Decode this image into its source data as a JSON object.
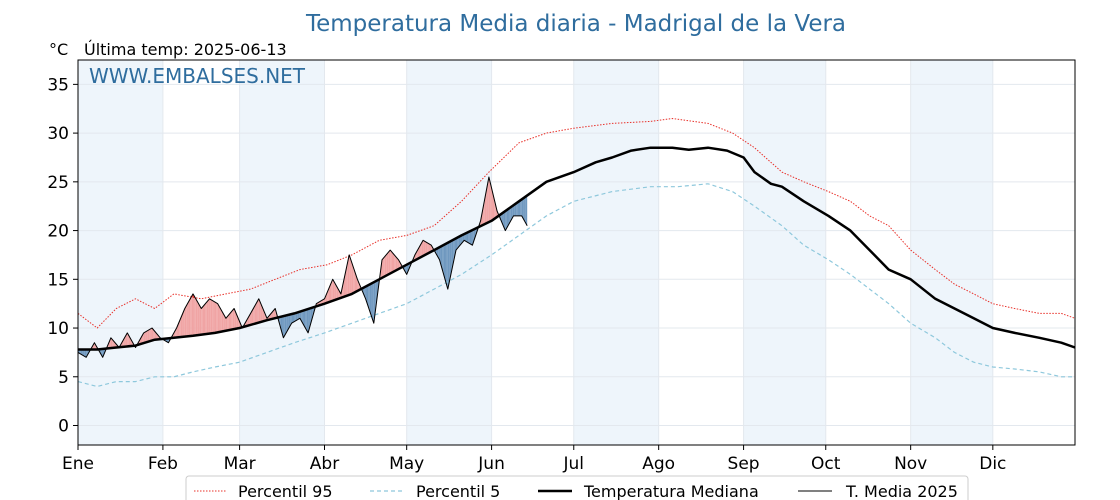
{
  "chart_data": {
    "type": "line",
    "title": "Temperatura Media diaria - Madrigal de la Vera",
    "unit_label": "°C",
    "last_temp_label": "Última temp: 2025-06-13",
    "watermark": "WWW.EMBALSES.NET",
    "ylim": [
      -2,
      37.5
    ],
    "yticks": [
      0,
      5,
      10,
      15,
      20,
      25,
      30,
      35
    ],
    "xlim": [
      1,
      365
    ],
    "x_unit": "day of year",
    "months": [
      {
        "label": "Ene",
        "day": 1
      },
      {
        "label": "Feb",
        "day": 32
      },
      {
        "label": "Mar",
        "day": 60
      },
      {
        "label": "Abr",
        "day": 91
      },
      {
        "label": "May",
        "day": 121
      },
      {
        "label": "Jun",
        "day": 152
      },
      {
        "label": "Jul",
        "day": 182
      },
      {
        "label": "Ago",
        "day": 213
      },
      {
        "label": "Sep",
        "day": 244
      },
      {
        "label": "Oct",
        "day": 274
      },
      {
        "label": "Nov",
        "day": 305
      },
      {
        "label": "Dic",
        "day": 335
      }
    ],
    "shaded_month_bands": [
      [
        1,
        32
      ],
      [
        60,
        91
      ],
      [
        121,
        152
      ],
      [
        182,
        213
      ],
      [
        244,
        274
      ],
      [
        305,
        335
      ]
    ],
    "grid": true,
    "legend_position": "bottom-center",
    "colors": {
      "p95": "#e8312a",
      "p5": "#8ec8dc",
      "median": "#000000",
      "current": "#000000",
      "above": "#f0a4a4",
      "above_extreme": "#e8312a",
      "below": "#6f98bf",
      "title": "#2f6d9e",
      "band": "#eef5fb"
    },
    "series": [
      {
        "name": "Percentil 95",
        "key": "p95",
        "style": "dotted",
        "points": [
          [
            1,
            11.5
          ],
          [
            8,
            10
          ],
          [
            15,
            12
          ],
          [
            22,
            13
          ],
          [
            29,
            12
          ],
          [
            36,
            13.5
          ],
          [
            46,
            13
          ],
          [
            55,
            13.5
          ],
          [
            64,
            14
          ],
          [
            73,
            15
          ],
          [
            82,
            16
          ],
          [
            92,
            16.5
          ],
          [
            101,
            17.5
          ],
          [
            111,
            19
          ],
          [
            121,
            19.5
          ],
          [
            131,
            20.5
          ],
          [
            141,
            23
          ],
          [
            151,
            26
          ],
          [
            162,
            29
          ],
          [
            172,
            30
          ],
          [
            182,
            30.5
          ],
          [
            196,
            31
          ],
          [
            210,
            31.2
          ],
          [
            218,
            31.5
          ],
          [
            231,
            31
          ],
          [
            240,
            30
          ],
          [
            248,
            28.5
          ],
          [
            258,
            26
          ],
          [
            266,
            25
          ],
          [
            275,
            24
          ],
          [
            283,
            23
          ],
          [
            290,
            21.5
          ],
          [
            297,
            20.5
          ],
          [
            305,
            18
          ],
          [
            314,
            16
          ],
          [
            321,
            14.5
          ],
          [
            328,
            13.5
          ],
          [
            335,
            12.5
          ],
          [
            343,
            12
          ],
          [
            352,
            11.5
          ],
          [
            360,
            11.5
          ],
          [
            365,
            11
          ]
        ]
      },
      {
        "name": "Percentil 5",
        "key": "p5",
        "style": "dashed",
        "points": [
          [
            1,
            4.5
          ],
          [
            8,
            4
          ],
          [
            15,
            4.5
          ],
          [
            22,
            4.5
          ],
          [
            29,
            5
          ],
          [
            36,
            5
          ],
          [
            43,
            5.5
          ],
          [
            51,
            6
          ],
          [
            60,
            6.5
          ],
          [
            70,
            7.5
          ],
          [
            80,
            8.5
          ],
          [
            91,
            9.5
          ],
          [
            101,
            10.5
          ],
          [
            111,
            11.5
          ],
          [
            121,
            12.5
          ],
          [
            131,
            14
          ],
          [
            141,
            15.5
          ],
          [
            152,
            17.5
          ],
          [
            162,
            19.5
          ],
          [
            172,
            21.5
          ],
          [
            182,
            23
          ],
          [
            196,
            24
          ],
          [
            210,
            24.5
          ],
          [
            220,
            24.5
          ],
          [
            231,
            24.8
          ],
          [
            240,
            24
          ],
          [
            248,
            22.5
          ],
          [
            258,
            20.5
          ],
          [
            266,
            18.5
          ],
          [
            275,
            17
          ],
          [
            283,
            15.5
          ],
          [
            290,
            14
          ],
          [
            297,
            12.5
          ],
          [
            305,
            10.5
          ],
          [
            314,
            9
          ],
          [
            321,
            7.5
          ],
          [
            328,
            6.5
          ],
          [
            335,
            6
          ],
          [
            343,
            5.8
          ],
          [
            352,
            5.5
          ],
          [
            360,
            5
          ],
          [
            365,
            5
          ]
        ]
      },
      {
        "name": "Temperatura Mediana",
        "key": "median",
        "style": "solid-thick",
        "points": [
          [
            1,
            7.8
          ],
          [
            8,
            7.8
          ],
          [
            15,
            8
          ],
          [
            22,
            8.2
          ],
          [
            29,
            8.8
          ],
          [
            36,
            9
          ],
          [
            43,
            9.2
          ],
          [
            51,
            9.5
          ],
          [
            60,
            10
          ],
          [
            70,
            10.8
          ],
          [
            80,
            11.5
          ],
          [
            91,
            12.5
          ],
          [
            101,
            13.5
          ],
          [
            111,
            15
          ],
          [
            121,
            16.5
          ],
          [
            131,
            18
          ],
          [
            141,
            19.5
          ],
          [
            152,
            21
          ],
          [
            162,
            23
          ],
          [
            172,
            25
          ],
          [
            182,
            26
          ],
          [
            190,
            27
          ],
          [
            196,
            27.5
          ],
          [
            203,
            28.2
          ],
          [
            210,
            28.5
          ],
          [
            218,
            28.5
          ],
          [
            224,
            28.3
          ],
          [
            231,
            28.5
          ],
          [
            238,
            28.2
          ],
          [
            244,
            27.5
          ],
          [
            248,
            26
          ],
          [
            254,
            24.8
          ],
          [
            258,
            24.5
          ],
          [
            266,
            23
          ],
          [
            275,
            21.5
          ],
          [
            283,
            20
          ],
          [
            290,
            18
          ],
          [
            297,
            16
          ],
          [
            305,
            15
          ],
          [
            314,
            13
          ],
          [
            321,
            12
          ],
          [
            328,
            11
          ],
          [
            335,
            10
          ],
          [
            343,
            9.5
          ],
          [
            352,
            9
          ],
          [
            360,
            8.5
          ],
          [
            365,
            8
          ]
        ]
      },
      {
        "name": "T. Media 2025",
        "key": "current",
        "style": "solid-thin",
        "points": [
          [
            1,
            7.5
          ],
          [
            4,
            7
          ],
          [
            7,
            8.5
          ],
          [
            10,
            7
          ],
          [
            13,
            9
          ],
          [
            16,
            8
          ],
          [
            19,
            9.5
          ],
          [
            22,
            8
          ],
          [
            25,
            9.5
          ],
          [
            28,
            10
          ],
          [
            31,
            9
          ],
          [
            34,
            8.5
          ],
          [
            37,
            10
          ],
          [
            40,
            12
          ],
          [
            43,
            13.5
          ],
          [
            46,
            12
          ],
          [
            49,
            13
          ],
          [
            52,
            12.5
          ],
          [
            55,
            11
          ],
          [
            58,
            12
          ],
          [
            61,
            10
          ],
          [
            64,
            11.5
          ],
          [
            67,
            13
          ],
          [
            70,
            11
          ],
          [
            73,
            12
          ],
          [
            76,
            9
          ],
          [
            79,
            10.5
          ],
          [
            82,
            11
          ],
          [
            85,
            9.5
          ],
          [
            88,
            12.5
          ],
          [
            91,
            13
          ],
          [
            94,
            15
          ],
          [
            97,
            13.5
          ],
          [
            100,
            17.5
          ],
          [
            103,
            15
          ],
          [
            106,
            13
          ],
          [
            109,
            10.5
          ],
          [
            112,
            17
          ],
          [
            115,
            18
          ],
          [
            118,
            17
          ],
          [
            121,
            15.5
          ],
          [
            124,
            17.5
          ],
          [
            127,
            19
          ],
          [
            130,
            18.5
          ],
          [
            133,
            17
          ],
          [
            136,
            14
          ],
          [
            139,
            18
          ],
          [
            142,
            19
          ],
          [
            145,
            18.5
          ],
          [
            148,
            21
          ],
          [
            151,
            25.5
          ],
          [
            154,
            22
          ],
          [
            157,
            20
          ],
          [
            160,
            21.5
          ],
          [
            163,
            21.5
          ],
          [
            165,
            20.5
          ]
        ]
      }
    ],
    "legend": [
      "Percentil 95",
      "Percentil 5",
      "Temperatura Mediana",
      "T. Media 2025"
    ]
  }
}
